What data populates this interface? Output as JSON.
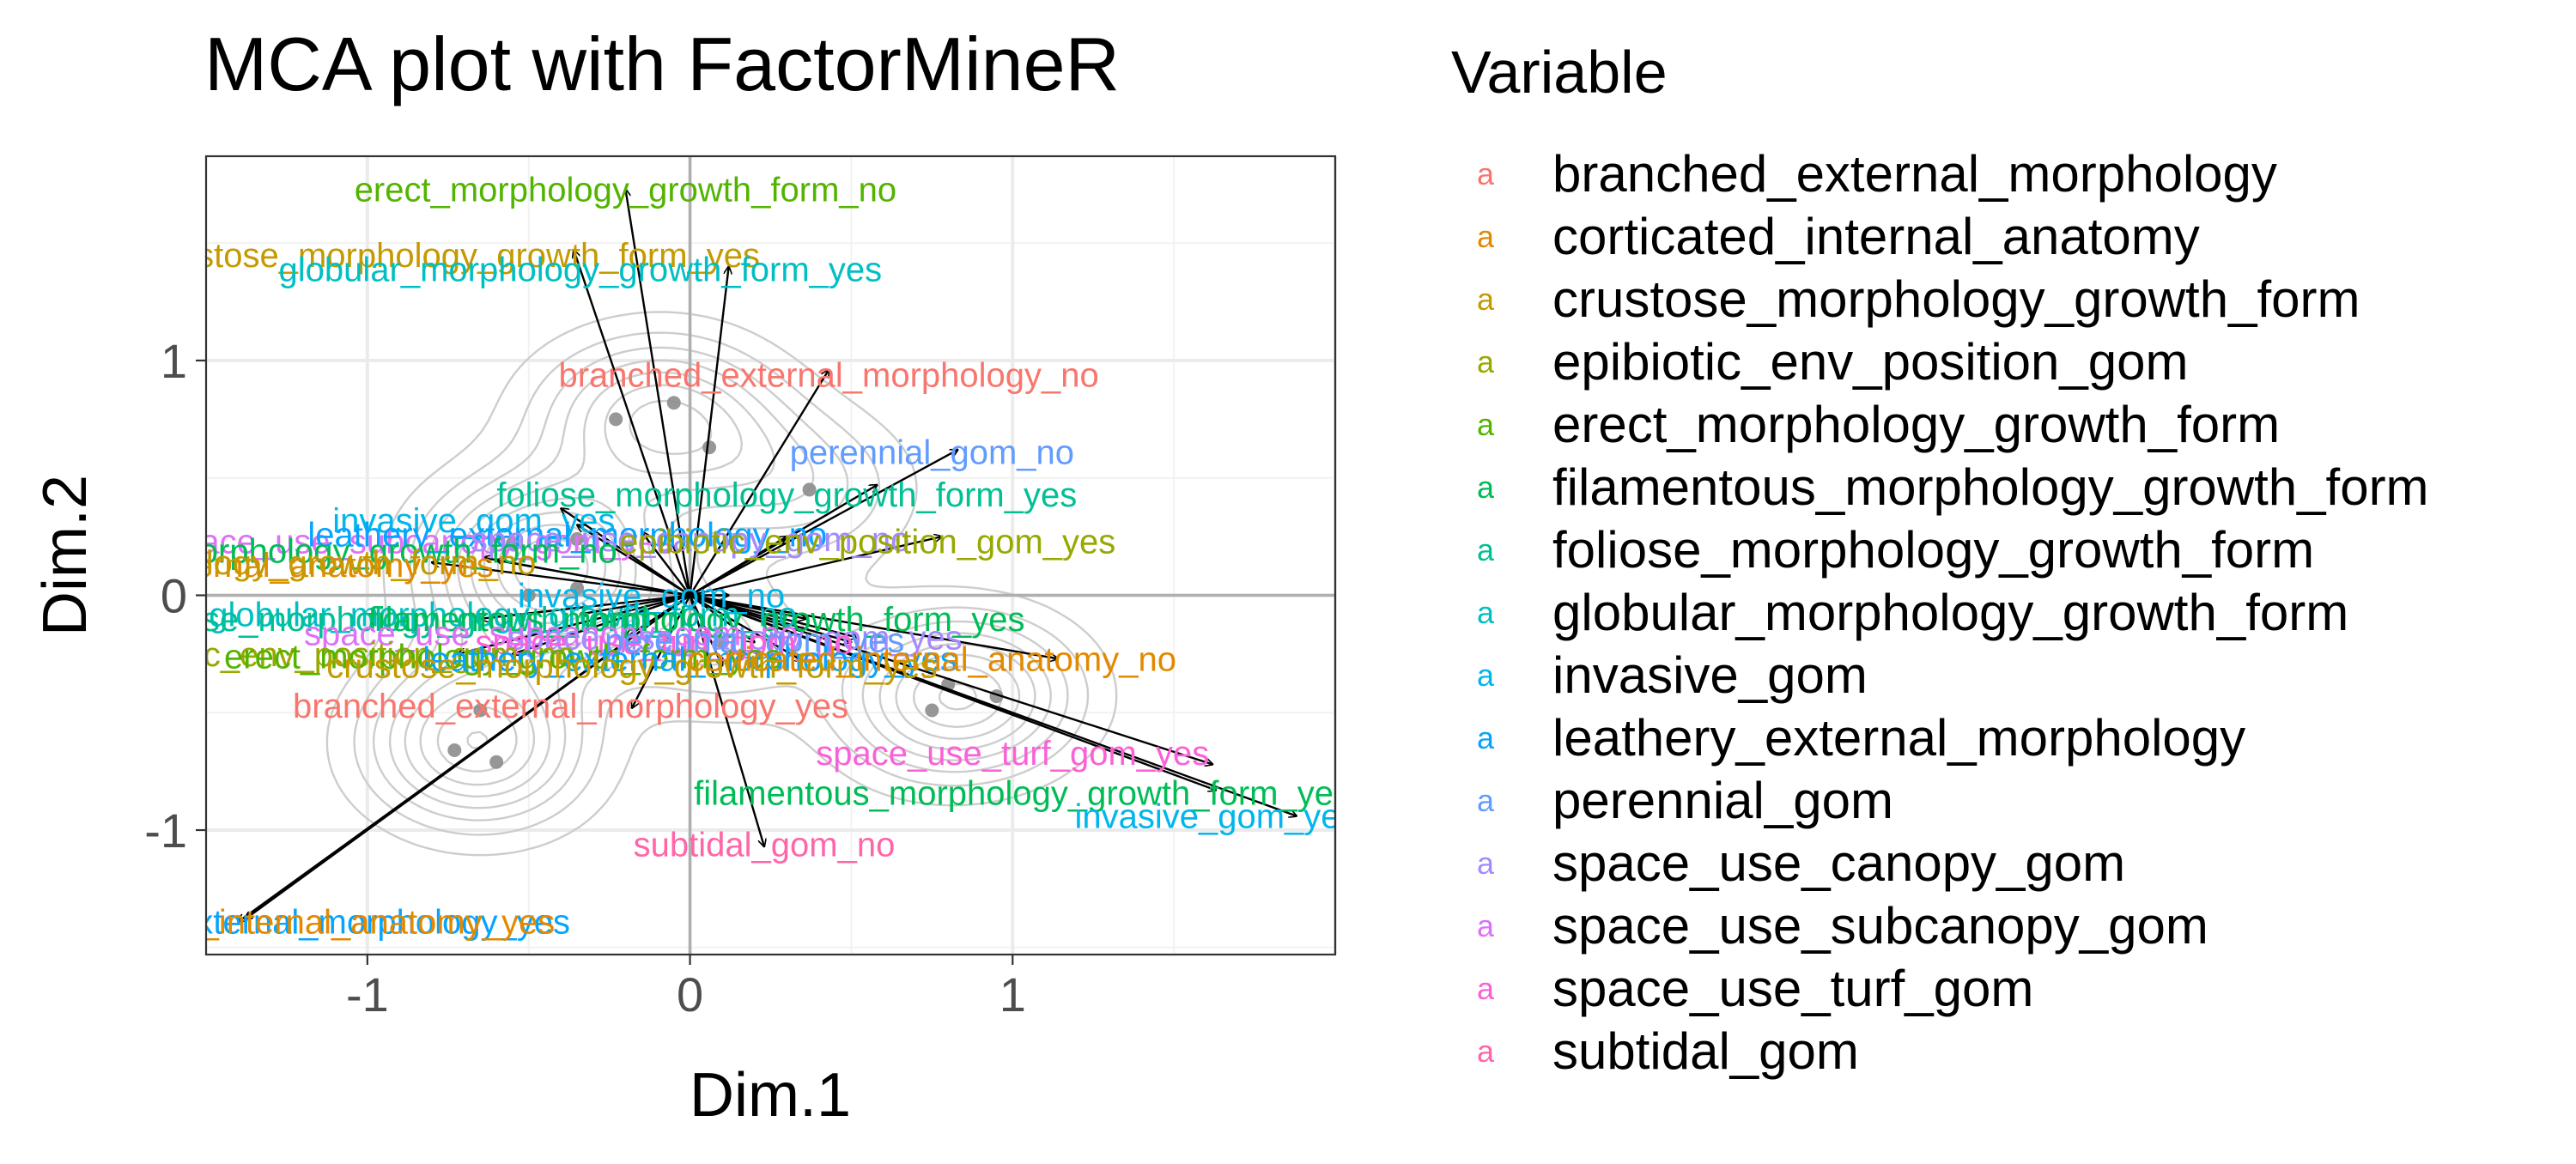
{
  "chart_data": {
    "type": "scatter",
    "title": "MCA plot with FactorMineR",
    "xlabel": "Dim.1",
    "ylabel": "Dim.2",
    "xlim": [
      -1.5,
      2.0
    ],
    "ylim": [
      -1.53,
      1.87
    ],
    "x_ticks": [
      -1,
      0,
      1
    ],
    "y_ticks": [
      -1,
      0,
      1
    ],
    "grid": true,
    "legend": {
      "title": "Variable",
      "placement": "right",
      "symbol": "a",
      "entries": [
        {
          "name": "branched_external_morphology",
          "color": "#F8766D"
        },
        {
          "name": "corticated_internal_anatomy",
          "color": "#E38900"
        },
        {
          "name": "crustose_morphology_growth_form",
          "color": "#C49A00"
        },
        {
          "name": "epibiotic_env_position_gom",
          "color": "#99A800"
        },
        {
          "name": "erect_morphology_growth_form",
          "color": "#53B400"
        },
        {
          "name": "filamentous_morphology_growth_form",
          "color": "#00BC56"
        },
        {
          "name": "foliose_morphology_growth_form",
          "color": "#00C094"
        },
        {
          "name": "globular_morphology_growth_form",
          "color": "#00BFC4"
        },
        {
          "name": "invasive_gom",
          "color": "#00B6EB"
        },
        {
          "name": "leathery_external_morphology",
          "color": "#06A4FF"
        },
        {
          "name": "perennial_gom",
          "color": "#619CFF"
        },
        {
          "name": "space_use_canopy_gom",
          "color": "#A58AFF"
        },
        {
          "name": "space_use_subcanopy_gom",
          "color": "#DF70F8"
        },
        {
          "name": "space_use_turf_gom",
          "color": "#FB61D7"
        },
        {
          "name": "subtidal_gom",
          "color": "#FF66A8"
        }
      ]
    },
    "individuals": [
      {
        "x": -0.05,
        "y": 0.82
      },
      {
        "x": -0.23,
        "y": 0.75
      },
      {
        "x": 0.06,
        "y": 0.63
      },
      {
        "x": 0.37,
        "y": 0.45
      },
      {
        "x": -0.35,
        "y": 0.24
      },
      {
        "x": -0.55,
        "y": 0.22
      },
      {
        "x": -0.35,
        "y": 0.03
      },
      {
        "x": -0.5,
        "y": 0.0
      },
      {
        "x": -0.65,
        "y": -0.49
      },
      {
        "x": -0.73,
        "y": -0.66
      },
      {
        "x": -0.6,
        "y": -0.71
      },
      {
        "x": 0.8,
        "y": -0.38
      },
      {
        "x": 0.95,
        "y": -0.43
      },
      {
        "x": 0.75,
        "y": -0.49
      },
      {
        "x": 0.1,
        "y": -0.2
      }
    ],
    "variables": [
      {
        "label": "erect_morphology_growth_form_no",
        "var": 4,
        "x": -0.2,
        "y": 1.73,
        "lx": -0.2,
        "ly": 1.73
      },
      {
        "label": "crustose_morphology_growth_form_yes",
        "var": 2,
        "x": -0.36,
        "y": 1.47,
        "lx": -0.73,
        "ly": 1.45
      },
      {
        "label": "globular_morphology_growth_form_yes",
        "var": 7,
        "x": 0.12,
        "y": 1.4,
        "lx": -0.34,
        "ly": 1.39
      },
      {
        "label": "branched_external_morphology_no",
        "var": 0,
        "x": 0.43,
        "y": 0.96,
        "lx": 0.43,
        "ly": 0.94
      },
      {
        "label": "perennial_gom_no",
        "var": 10,
        "x": 0.83,
        "y": 0.62,
        "lx": 0.75,
        "ly": 0.61
      },
      {
        "label": "foliose_morphology_growth_form_yes",
        "var": 6,
        "x": 0.58,
        "y": 0.47,
        "lx": 0.3,
        "ly": 0.43
      },
      {
        "label": "invasive_gom_yes",
        "var": 8,
        "x": -0.4,
        "y": 0.37,
        "lx": -0.67,
        "ly": 0.32
      },
      {
        "label": "space_use_subcanopy_gom_yes",
        "var": 12,
        "x": -0.35,
        "y": 0.3,
        "lx": -0.84,
        "ly": 0.23
      },
      {
        "label": "leathery_external_morphology_no",
        "var": 9,
        "x": -0.15,
        "y": 0.27,
        "lx": -0.38,
        "ly": 0.26
      },
      {
        "label": "space_use_canopy_gom_no",
        "var": 11,
        "x": 0.3,
        "y": 0.25,
        "lx": 0.0,
        "ly": 0.24
      },
      {
        "label": "epibiotic_env_position_gom_yes",
        "var": 3,
        "x": 0.78,
        "y": 0.25,
        "lx": 0.55,
        "ly": 0.23
      },
      {
        "label": "filamentous_morphology_growth_form_no",
        "var": 5,
        "x": -0.6,
        "y": 0.15,
        "lx": -1.22,
        "ly": 0.19
      },
      {
        "label": "corticated_internal_anatomy_yes",
        "var": 1,
        "x": -0.64,
        "y": 0.16,
        "lx": -1.39,
        "ly": 0.13
      },
      {
        "label": "crustose_morphology_growth_form_no",
        "var": 2,
        "x": -0.8,
        "y": 0.14,
        "lx": -1.4,
        "ly": 0.14
      },
      {
        "label": "invasive_gom_no",
        "var": 8,
        "x": 0.12,
        "y": 0.0,
        "lx": -0.12,
        "ly": 0.0
      },
      {
        "label": "globular_morphology_growth_form_no",
        "var": 7,
        "x": -0.34,
        "y": -0.08,
        "lx": -0.58,
        "ly": -0.08
      },
      {
        "label": "foliose_morphology_growth_form_no",
        "var": 6,
        "x": -0.65,
        "y": -0.1,
        "lx": -0.83,
        "ly": -0.1
      },
      {
        "label": "filamentous_morphology_growth_form_yes",
        "var": 5,
        "x": 0.36,
        "y": -0.1,
        "lx": 0.02,
        "ly": -0.1
      },
      {
        "label": "space_use_subcanopy_gom_no",
        "var": 12,
        "x": -0.2,
        "y": -0.18,
        "lx": -0.43,
        "ly": -0.16
      },
      {
        "label": "space_use_canopy_gom_yes",
        "var": 11,
        "x": 0.52,
        "y": -0.18,
        "lx": 0.14,
        "ly": -0.18
      },
      {
        "label": "space_use_turf_gom_no",
        "var": 13,
        "x": 0.2,
        "y": -0.2,
        "lx": -0.08,
        "ly": -0.2
      },
      {
        "label": "perennial_gom_yes",
        "var": 10,
        "x": 0.5,
        "y": -0.2,
        "lx": 0.2,
        "ly": -0.19
      },
      {
        "label": "epibiotic_env_position_gom_no",
        "var": 3,
        "x": -0.72,
        "y": -0.25,
        "lx": -1.1,
        "ly": -0.25
      },
      {
        "label": "erect_morphology_growth_form_yes",
        "var": 4,
        "x": -0.55,
        "y": -0.25,
        "lx": -0.58,
        "ly": -0.26
      },
      {
        "label": "leathery_external_morphology_yes",
        "var": 9,
        "x": 0.35,
        "y": -0.28,
        "lx": -0.0,
        "ly": -0.27
      },
      {
        "label": "corticated_internal_anatomy_no",
        "var": 1,
        "x": 1.14,
        "y": -0.27,
        "lx": 0.75,
        "ly": -0.27
      },
      {
        "label": "crustose_morphology_growth_form_yes",
        "var": 2,
        "x": 0.1,
        "y": -0.3,
        "lx": -0.18,
        "ly": -0.3
      },
      {
        "label": "branched_external_morphology_yes",
        "var": 0,
        "x": -0.18,
        "y": -0.48,
        "lx": -0.37,
        "ly": -0.47
      },
      {
        "label": "space_use_turf_gom_yes",
        "var": 13,
        "x": 1.62,
        "y": -0.72,
        "lx": 1.0,
        "ly": -0.67
      },
      {
        "label": "filamentous_morphology_growth_form_yes",
        "var": 5,
        "x": 1.63,
        "y": -0.83,
        "lx": 1.03,
        "ly": -0.84
      },
      {
        "label": "invasive_gom_yes",
        "var": 8,
        "x": 1.88,
        "y": -0.94,
        "lx": 1.63,
        "ly": -0.94
      },
      {
        "label": "subtidal_gom_no",
        "var": 14,
        "x": 0.23,
        "y": -1.07,
        "lx": 0.23,
        "ly": -1.06
      },
      {
        "label": "leathery_external_morphology_yes",
        "var": 9,
        "x": -1.38,
        "y": -1.38,
        "lx": -1.2,
        "ly": -1.39
      },
      {
        "label": "corticated_internal_anatomy_yes",
        "var": 1,
        "x": -1.4,
        "y": -1.39,
        "lx": -1.2,
        "ly": -1.39
      }
    ]
  }
}
